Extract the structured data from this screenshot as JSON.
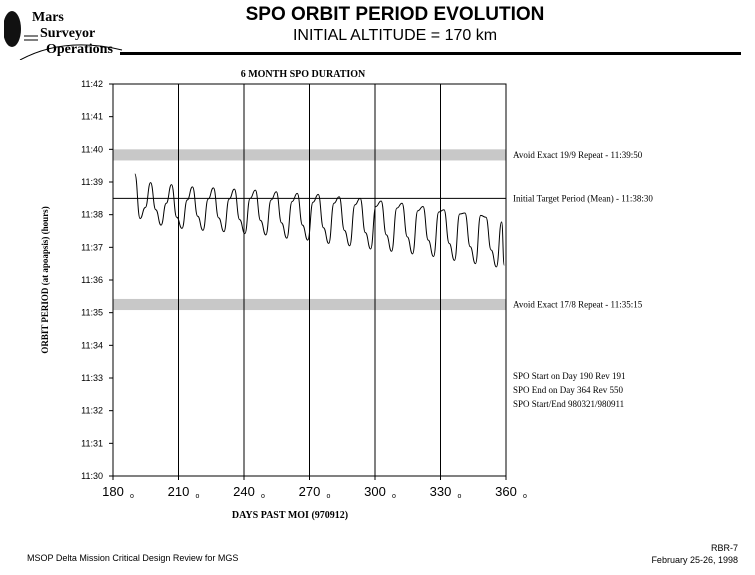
{
  "header": {
    "logo": {
      "line1": "Mars",
      "line2": "Surveyor",
      "line3": "Operations"
    },
    "title": "SPO ORBIT PERIOD EVOLUTION",
    "subtitle": "INITIAL ALTITUDE = 170 km"
  },
  "footer": {
    "left": "MSOP Delta Mission Critical Design Review for MGS",
    "right_line1": "RBR-7",
    "right_line2": "February 25-26, 1998"
  },
  "chart_data": {
    "type": "line",
    "title": "6 MONTH SPO DURATION",
    "xlabel": "DAYS PAST MOI (970912)",
    "ylabel": "ORBIT PERIOD (at apoapsis) (hours)",
    "xlim": [
      180,
      360
    ],
    "ylim_minutes": [
      30,
      42
    ],
    "x_ticks": [
      180,
      210,
      240,
      270,
      300,
      330,
      360
    ],
    "x_tick_labels": [
      "180",
      "210",
      "240",
      "270",
      "300",
      "330",
      "360"
    ],
    "x_tick_suffix": "o",
    "y_ticks_minutes": [
      30,
      31,
      32,
      33,
      34,
      35,
      36,
      37,
      38,
      39,
      40,
      41,
      42
    ],
    "y_tick_labels": [
      "11:30",
      "11:31",
      "11:32",
      "11:33",
      "11:34",
      "11:35",
      "11:36",
      "11:37",
      "11:38",
      "11:39",
      "11:40",
      "11:41",
      "11:42"
    ],
    "vertical_gridlines_x": [
      210,
      240,
      270,
      300,
      330
    ],
    "bands": [
      {
        "label": "Avoid Exact 19/9 Repeat - 11:39:50",
        "y_minutes": 39.83,
        "half_width_minutes": 0.17,
        "color": "#c8c8c8"
      },
      {
        "label": "Avoid Exact 17/8 Repeat - 11:35:15",
        "y_minutes": 35.25,
        "half_width_minutes": 0.17,
        "color": "#c8c8c8"
      }
    ],
    "reference_lines": [
      {
        "label": "Initial Target Period (Mean) - 11:38:30",
        "y_minutes": 38.5
      }
    ],
    "notes": [
      "SPO Start on Day 190 Rev 191",
      "SPO End on Day 364 Rev 550",
      "SPO Start/End 980321/980911"
    ],
    "series": [
      {
        "name": "Orbit period",
        "color": "#000000",
        "x": [
          190,
          192.4,
          194.8,
          197.2,
          199.6,
          202,
          204.4,
          206.8,
          209.2,
          211.6,
          214,
          216.4,
          218.8,
          221.2,
          223.6,
          226,
          228.4,
          230.8,
          233.2,
          235.6,
          238,
          240.4,
          242.8,
          245.2,
          247.6,
          250,
          252.4,
          254.8,
          257.2,
          259.6,
          262,
          264.4,
          266.8,
          269.2,
          271.6,
          274,
          276.4,
          278.8,
          281.2,
          283.6,
          286,
          288.4,
          290.8,
          293.2,
          295.6,
          298,
          300.4,
          302.8,
          305.2,
          307.6,
          310,
          312.4,
          314.8,
          317.2,
          319.6,
          322,
          324.4,
          326.8,
          329.2,
          331.6,
          334,
          336.4,
          338.8,
          341.2,
          343.6,
          346,
          348.4,
          350.8,
          353.2,
          355.6,
          358,
          359.2
        ],
        "y_minutes": [
          39.25,
          37.88,
          38.22,
          38.98,
          38.15,
          37.68,
          38.35,
          38.92,
          37.92,
          37.58,
          38.45,
          38.85,
          37.95,
          37.52,
          38.48,
          38.82,
          37.9,
          37.48,
          38.48,
          38.78,
          37.85,
          37.42,
          38.5,
          38.75,
          37.82,
          37.38,
          38.45,
          38.7,
          37.75,
          37.28,
          38.4,
          38.65,
          37.68,
          37.22,
          38.38,
          38.62,
          37.6,
          37.12,
          38.35,
          38.55,
          37.52,
          37.05,
          38.3,
          38.5,
          37.45,
          36.95,
          38.25,
          38.42,
          37.38,
          36.88,
          38.2,
          38.35,
          37.32,
          36.8,
          38.12,
          38.25,
          37.22,
          36.72,
          38.08,
          38.15,
          37.12,
          36.6,
          38.02,
          38.05,
          37.02,
          36.5,
          37.98,
          37.92,
          36.92,
          36.4,
          37.78,
          36.45
        ]
      }
    ]
  }
}
